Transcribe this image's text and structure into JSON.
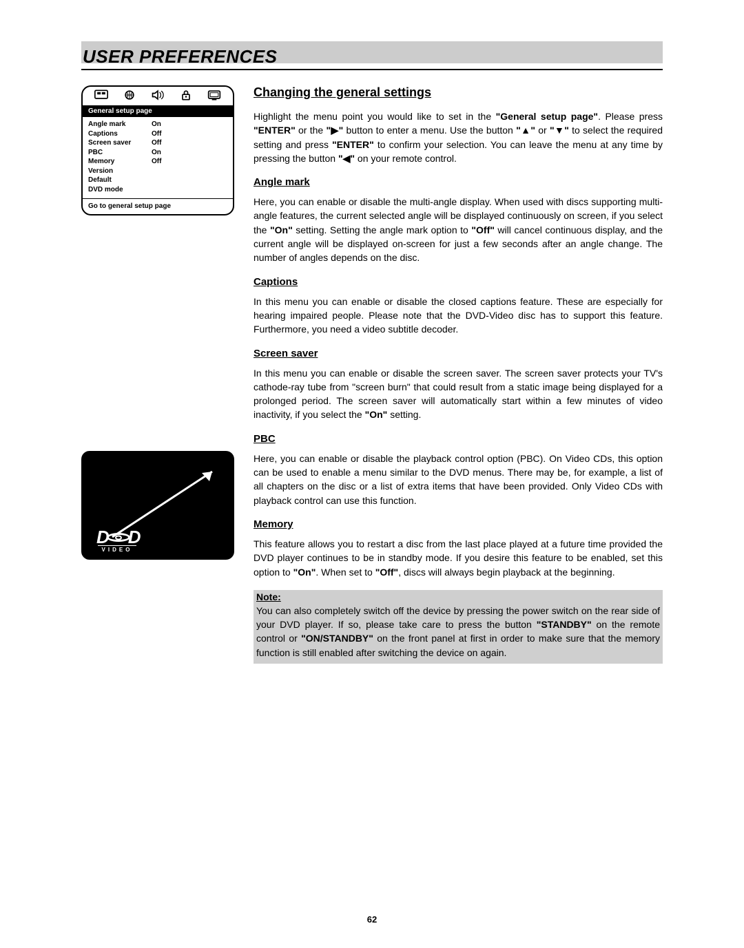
{
  "page": {
    "title": "USER PREFERENCES",
    "number": "62",
    "background": "#ffffff",
    "header_bar_color": "#cccccc",
    "note_background": "#cfcfcf",
    "body_fontsize": 14,
    "heading_fontsize": 18,
    "subheading_fontsize": 15
  },
  "setup_box": {
    "title": "General setup page",
    "footer": "Go to general setup page",
    "icons": [
      "screen-icon",
      "globe-icon",
      "speaker-icon",
      "lock-icon",
      "tv-icon"
    ],
    "rows": [
      {
        "label": "Angle mark",
        "value": "On"
      },
      {
        "label": "Captions",
        "value": "Off"
      },
      {
        "label": "Screen saver",
        "value": "Off"
      },
      {
        "label": "PBC",
        "value": "On"
      },
      {
        "label": "Memory",
        "value": "Off"
      },
      {
        "label": "Version",
        "value": ""
      },
      {
        "label": "Default",
        "value": ""
      },
      {
        "label": "DVD mode",
        "value": ""
      }
    ]
  },
  "dvd_figure": {
    "logo_top": "DVD",
    "logo_sub": "VIDEO",
    "background": "#000000",
    "foreground": "#ffffff"
  },
  "content": {
    "h1": "Changing the general settings",
    "intro": "Highlight the menu point you would like to set in the <b>\"General setup page\"</b>. Please press <b>\"ENTER\"</b> or the <b>\"▶\"</b> button to enter a menu. Use the button <b>\"▲\"</b> or <b>\"▼\"</b> to select the required setting and press <b>\"ENTER\"</b> to confirm your selection. You can leave the menu at any time by pressing the button <b>\"◀\"</b> on your remote control.",
    "sections": [
      {
        "heading": "Angle mark",
        "body": "Here, you can enable or disable the multi-angle display. When used with discs supporting multi-angle features, the current selected angle will be displayed continuously on screen, if you select the <b>\"On\"</b> setting. Setting the angle mark option to <b>\"Off\"</b> will cancel continuous display, and the current angle will be displayed on-screen for just a few seconds after an angle change. The number of angles depends on the disc."
      },
      {
        "heading": "Captions",
        "body": "In this menu you can enable or disable the closed captions feature. These are especially for hearing impaired people. Please note that the DVD-Video disc has to support this feature. Furthermore, you need a video subtitle decoder."
      },
      {
        "heading": "Screen saver",
        "body": "In this menu you can enable or disable the screen saver. The screen saver protects your TV's cathode-ray tube from \"screen burn\" that could result from a static image being displayed for a prolonged period. The screen saver will automatically start within a few minutes of video inactivity, if you select the <b>\"On\"</b> setting."
      },
      {
        "heading": "PBC",
        "body": "Here, you can enable or disable the playback control option (PBC). On Video CDs, this option can be used to enable a menu similar to the DVD menus. There may be, for example, a list of all chapters on the disc or a list of extra items that have been provided. Only Video CDs with playback control can use this function."
      },
      {
        "heading": "Memory",
        "body": "This feature allows you to restart a disc from the last place played at a future time provided the DVD player continues to be in standby mode. If you desire this feature to be enabled, set this option to <b>\"On\"</b>. When set to <b>\"Off\"</b>, discs will always begin playback at the beginning."
      }
    ],
    "note": {
      "title": "Note:",
      "body": "You can also completely switch off the device by pressing the power switch on the rear side of your DVD player. If so, please take care to press the button <b>\"STANDBY\"</b> on the remote control or <b>\"ON/STANDBY\"</b> on the front panel at first in order to make sure that the memory function is still enabled after switching the device on again."
    }
  }
}
